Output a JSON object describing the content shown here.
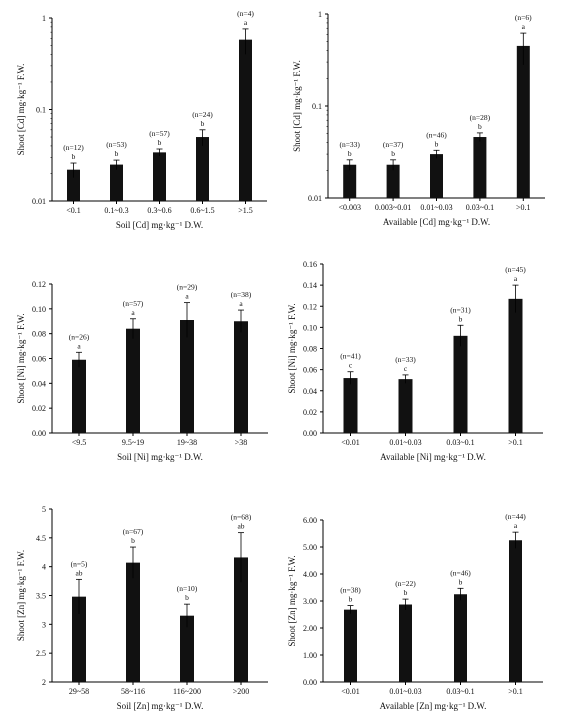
{
  "chart_data": [
    {
      "type": "bar",
      "ylabel": "Shoot [Cd] mg·kg⁻¹ F.W.",
      "xlabel": "Soil [Cd] mg·kg⁻¹ D.W.",
      "yscale": "log",
      "ylim": [
        0.01,
        1
      ],
      "yticks": [
        "1",
        "0.1",
        "0.01"
      ],
      "categories": [
        "<0.1",
        "0.1~0.3",
        "0.3~0.6",
        "0.6~1.5",
        ">1.5"
      ],
      "values": [
        0.022,
        0.025,
        0.034,
        0.05,
        0.58
      ],
      "errors": [
        0.004,
        0.003,
        0.003,
        0.01,
        0.18
      ],
      "n_labels": [
        "(n=12)",
        "(n=53)",
        "(n=57)",
        "(n=24)",
        "(n=4)"
      ],
      "letters": [
        "b",
        "b",
        "b",
        "b",
        "a"
      ]
    },
    {
      "type": "bar",
      "ylabel": "Shoot [Cd] mg·kg⁻¹ F.W.",
      "xlabel": "Available [Cd] mg·kg⁻¹ D.W.",
      "yscale": "log",
      "ylim": [
        0.01,
        1
      ],
      "yticks": [
        "1",
        "0.1",
        "0.01"
      ],
      "categories": [
        "<0.003",
        "0.003~0.01",
        "0.01~0.03",
        "0.03~0.1",
        ">0.1"
      ],
      "values": [
        0.023,
        0.023,
        0.03,
        0.046,
        0.45
      ],
      "errors": [
        0.003,
        0.003,
        0.003,
        0.005,
        0.17
      ],
      "n_labels": [
        "(n=33)",
        "(n=37)",
        "(n=46)",
        "(n=28)",
        "(n=6)"
      ],
      "letters": [
        "b",
        "b",
        "b",
        "b",
        "a"
      ]
    },
    {
      "type": "bar",
      "ylabel": "Shoot [Ni] mg·kg⁻¹ F.W.",
      "xlabel": "Soil [Ni] mg·kg⁻¹ D.W.",
      "yscale": "linear",
      "ylim": [
        0,
        0.12
      ],
      "yticks": [
        "0.12",
        "0.10",
        "0.08",
        "0.06",
        "0.04",
        "0.02",
        "0.00"
      ],
      "categories": [
        "<9.5",
        "9.5~19",
        "19~38",
        ">38"
      ],
      "values": [
        0.059,
        0.084,
        0.091,
        0.09
      ],
      "errors": [
        0.006,
        0.008,
        0.014,
        0.009
      ],
      "n_labels": [
        "(n=26)",
        "(n=57)",
        "(n=29)",
        "(n=38)"
      ],
      "letters": [
        "a",
        "a",
        "a",
        "a"
      ]
    },
    {
      "type": "bar",
      "ylabel": "Shoot [Ni] mg·kg⁻¹ F.W.",
      "xlabel": "Available [Ni] mg·kg⁻¹ D.W.",
      "yscale": "linear",
      "ylim": [
        0,
        0.16
      ],
      "yticks": [
        "0.16",
        "0.14",
        "0.12",
        "0.10",
        "0.08",
        "0.06",
        "0.04",
        "0.02",
        "0.00"
      ],
      "categories": [
        "<0.01",
        "0.01~0.03",
        "0.03~0.1",
        ">0.1"
      ],
      "values": [
        0.052,
        0.051,
        0.092,
        0.127
      ],
      "errors": [
        0.006,
        0.004,
        0.01,
        0.013
      ],
      "n_labels": [
        "(n=41)",
        "(n=33)",
        "(n=31)",
        "(n=45)"
      ],
      "letters": [
        "c",
        "c",
        "b",
        "a"
      ]
    },
    {
      "type": "bar",
      "ylabel": "Shoot [Zn] mg·kg⁻¹ F.W.",
      "xlabel": "Soil [Zn] mg·kg⁻¹ D.W.",
      "yscale": "linear",
      "ylim": [
        2,
        5
      ],
      "yticks": [
        "5",
        "4.5",
        "4",
        "3.5",
        "3",
        "2.5",
        "2"
      ],
      "categories": [
        "29~58",
        "58~116",
        "116~200",
        ">200"
      ],
      "values": [
        3.48,
        4.07,
        3.15,
        4.16
      ],
      "errors": [
        0.3,
        0.27,
        0.2,
        0.43
      ],
      "n_labels": [
        "(n=5)",
        "(n=67)",
        "(n=10)",
        "(n=68)"
      ],
      "letters": [
        "ab",
        "b",
        "b",
        "ab"
      ]
    },
    {
      "type": "bar",
      "ylabel": "Shoot [Zn] mg·kg⁻¹ F.W.",
      "xlabel": "Available [Zn] mg·kg⁻¹ D.W.",
      "yscale": "linear",
      "ylim": [
        0,
        6
      ],
      "yticks": [
        "6.00",
        "5.00",
        "4.00",
        "3.00",
        "2.00",
        "1.00",
        "0.00"
      ],
      "categories": [
        "<0.01",
        "0.01~0.03",
        "0.03~0.1",
        ">0.1"
      ],
      "values": [
        2.68,
        2.87,
        3.25,
        5.25
      ],
      "errors": [
        0.15,
        0.2,
        0.22,
        0.3
      ],
      "n_labels": [
        "(n=38)",
        "(n=22)",
        "(n=46)",
        "(n=44)"
      ],
      "letters": [
        "b",
        "b",
        "b",
        "a"
      ]
    }
  ]
}
